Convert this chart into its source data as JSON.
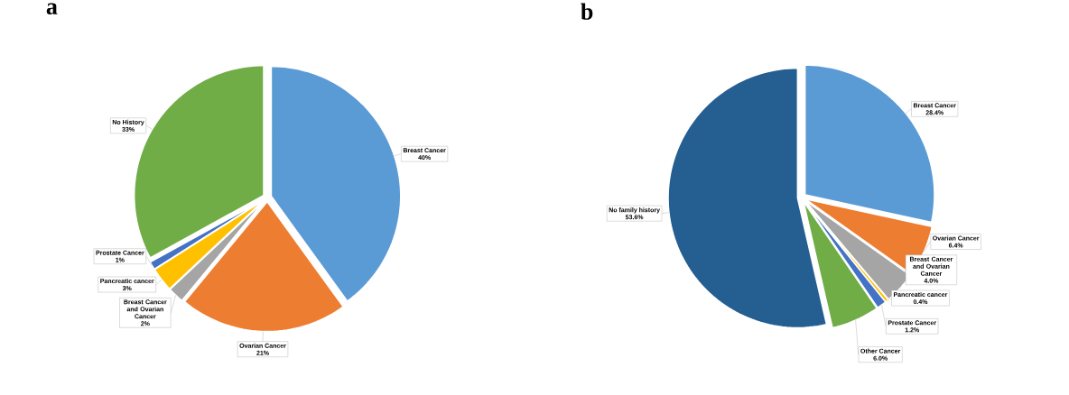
{
  "chart_data": [
    {
      "type": "pie",
      "title": "a",
      "categories": [
        "Breast Cancer",
        "Ovarian Cancer",
        "Breast Cancer and Ovarian Cancer",
        "Pancreatic cancer",
        "Prostate Cancer",
        "No History"
      ],
      "values": [
        40,
        21,
        2,
        3,
        1,
        33
      ],
      "value_labels": [
        "40%",
        "21%",
        "2%",
        "3%",
        "1%",
        "33%"
      ],
      "colors": [
        "#5b9bd5",
        "#ed7d31",
        "#a5a5a5",
        "#ffc000",
        "#4472c4",
        "#70ad47"
      ]
    },
    {
      "type": "pie",
      "title": "b",
      "categories": [
        "Breast Cancer",
        "Ovarian Cancer",
        "Breast Cancer and Ovarian Cancer",
        "Pancreatic cancer",
        "Prostate Cancer",
        "Other Cancer",
        "No family history"
      ],
      "values": [
        28.4,
        6.4,
        4.0,
        0.4,
        1.2,
        6.0,
        53.6
      ],
      "value_labels": [
        "28.4%",
        "6.4%",
        "4.0%",
        "0.4%",
        "1.2%",
        "6.0%",
        "53.6%"
      ],
      "colors": [
        "#5b9bd5",
        "#ed7d31",
        "#a5a5a5",
        "#ffc000",
        "#4472c4",
        "#70ad47",
        "#255e91"
      ]
    }
  ]
}
